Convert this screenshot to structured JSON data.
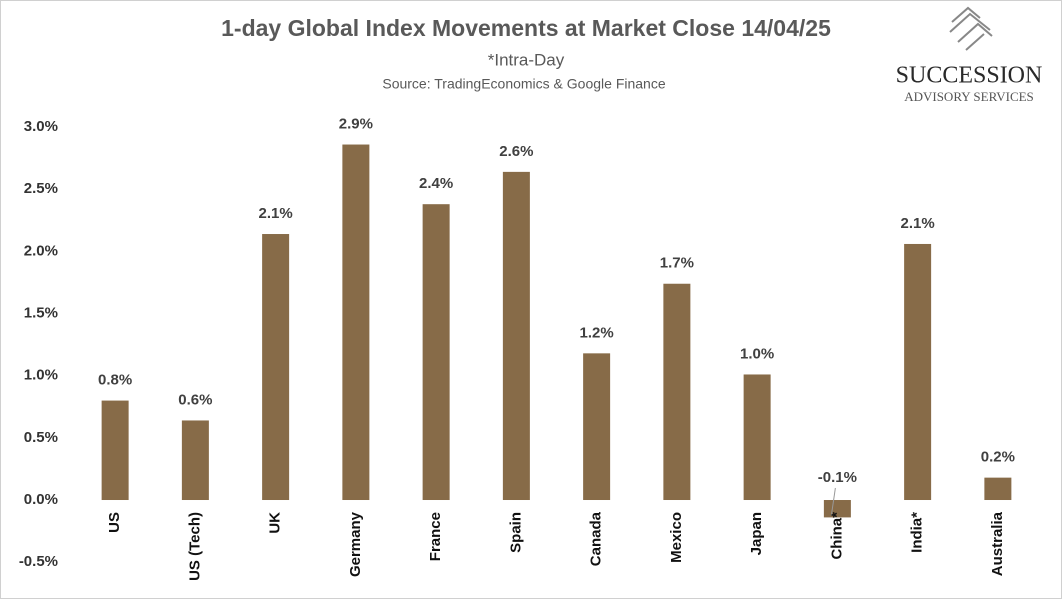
{
  "chart_data": {
    "type": "bar",
    "title": "1-day Global Index Movements at Market Close 14/04/25",
    "subtitle": "*Intra-Day",
    "source": "Source: TradingEconomics & Google Finance",
    "brand": {
      "name": "SUCCESSION",
      "tagline": "ADVISORY SERVICES"
    },
    "categories": [
      "US",
      "US (Tech)",
      "UK",
      "Germany",
      "France",
      "Spain",
      "Canada",
      "Mexico",
      "Japan",
      "China*",
      "India*",
      "Australia"
    ],
    "values": [
      0.8,
      0.64,
      2.14,
      2.86,
      2.38,
      2.64,
      1.18,
      1.74,
      1.01,
      -0.14,
      2.06,
      0.18
    ],
    "value_labels": [
      "0.8%",
      "0.6%",
      "2.1%",
      "2.9%",
      "2.4%",
      "2.6%",
      "1.2%",
      "1.7%",
      "1.0%",
      "-0.1%",
      "2.1%",
      "0.2%"
    ],
    "color": "#876b48",
    "ylim": [
      -0.65,
      3.1
    ],
    "yticks": [
      {
        "value": -0.5,
        "label": "-0.5%"
      },
      {
        "value": 0,
        "label": "0.0%"
      },
      {
        "value": 0.5,
        "label": "0.5%"
      },
      {
        "value": 1,
        "label": "1.0%"
      },
      {
        "value": 1.5,
        "label": "1.5%"
      },
      {
        "value": 2,
        "label": "2.0%"
      },
      {
        "value": 2.5,
        "label": "2.5%"
      },
      {
        "value": 3,
        "label": "3.0%"
      }
    ],
    "grid": false
  }
}
